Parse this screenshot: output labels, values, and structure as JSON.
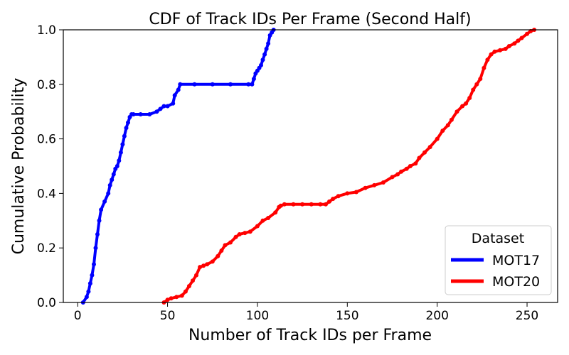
{
  "chart_data": {
    "type": "line",
    "title": "CDF of Track IDs Per Frame (Second Half)",
    "xlabel": "Number of Track IDs per Frame",
    "ylabel": "Cumulative Probability",
    "xlim": [
      -8,
      267
    ],
    "ylim": [
      0,
      1.0
    ],
    "xticks": [
      0,
      50,
      100,
      150,
      200,
      250
    ],
    "yticks": [
      0.0,
      0.2,
      0.4,
      0.6,
      0.8,
      1.0
    ],
    "xtick_labels": [
      "0",
      "50",
      "100",
      "150",
      "200",
      "250"
    ],
    "ytick_labels": [
      "0.0",
      "0.2",
      "0.4",
      "0.6",
      "0.8",
      "1.0"
    ],
    "grid": false,
    "legend": {
      "title": "Dataset",
      "position": "lower-right"
    },
    "series": [
      {
        "name": "MOT17",
        "color": "#0000ff",
        "x": [
          3,
          5,
          6,
          7,
          8,
          9,
          10,
          11,
          12,
          13,
          15,
          17,
          18,
          19,
          20,
          21,
          22,
          23,
          24,
          25,
          26,
          27,
          28,
          29,
          30,
          31,
          35,
          40,
          44,
          46,
          48,
          50,
          53,
          54,
          56,
          57,
          65,
          75,
          85,
          95,
          97,
          98,
          99,
          100,
          101,
          102,
          103,
          104,
          105,
          106,
          107,
          108,
          109
        ],
        "y": [
          0.0,
          0.02,
          0.04,
          0.07,
          0.1,
          0.14,
          0.2,
          0.25,
          0.3,
          0.34,
          0.37,
          0.4,
          0.43,
          0.45,
          0.47,
          0.49,
          0.5,
          0.52,
          0.55,
          0.58,
          0.61,
          0.64,
          0.66,
          0.68,
          0.69,
          0.69,
          0.69,
          0.69,
          0.7,
          0.71,
          0.72,
          0.72,
          0.73,
          0.76,
          0.78,
          0.8,
          0.8,
          0.8,
          0.8,
          0.8,
          0.8,
          0.82,
          0.84,
          0.85,
          0.86,
          0.87,
          0.89,
          0.91,
          0.93,
          0.95,
          0.98,
          0.99,
          1.0
        ]
      },
      {
        "name": "MOT20",
        "color": "#ff0000",
        "x": [
          48,
          50,
          52,
          55,
          58,
          60,
          62,
          64,
          66,
          68,
          70,
          72,
          75,
          78,
          80,
          82,
          85,
          88,
          90,
          93,
          96,
          100,
          103,
          106,
          110,
          112,
          113,
          115,
          120,
          125,
          130,
          135,
          138,
          140,
          142,
          145,
          150,
          155,
          160,
          165,
          170,
          175,
          178,
          180,
          183,
          185,
          188,
          190,
          193,
          196,
          200,
          203,
          206,
          208,
          211,
          214,
          216,
          218,
          220,
          222,
          224,
          226,
          228,
          230,
          232,
          235,
          238,
          240,
          243,
          245,
          247,
          250,
          252,
          254
        ],
        "y": [
          0.0,
          0.01,
          0.015,
          0.02,
          0.025,
          0.04,
          0.06,
          0.08,
          0.1,
          0.13,
          0.135,
          0.14,
          0.15,
          0.17,
          0.19,
          0.21,
          0.22,
          0.24,
          0.25,
          0.255,
          0.26,
          0.28,
          0.3,
          0.31,
          0.33,
          0.35,
          0.355,
          0.36,
          0.36,
          0.36,
          0.36,
          0.36,
          0.36,
          0.37,
          0.38,
          0.39,
          0.4,
          0.405,
          0.42,
          0.43,
          0.44,
          0.46,
          0.47,
          0.48,
          0.49,
          0.5,
          0.51,
          0.53,
          0.55,
          0.57,
          0.6,
          0.63,
          0.65,
          0.67,
          0.7,
          0.72,
          0.73,
          0.75,
          0.78,
          0.8,
          0.82,
          0.86,
          0.89,
          0.91,
          0.92,
          0.925,
          0.93,
          0.94,
          0.95,
          0.96,
          0.97,
          0.985,
          0.995,
          1.0
        ]
      }
    ]
  }
}
